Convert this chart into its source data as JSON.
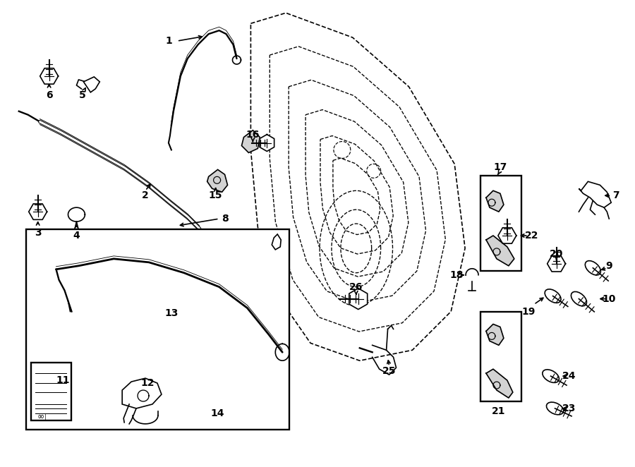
{
  "bg_color": "#ffffff",
  "line_color": "#000000",
  "figsize": [
    9.0,
    6.62
  ],
  "dpi": 100
}
